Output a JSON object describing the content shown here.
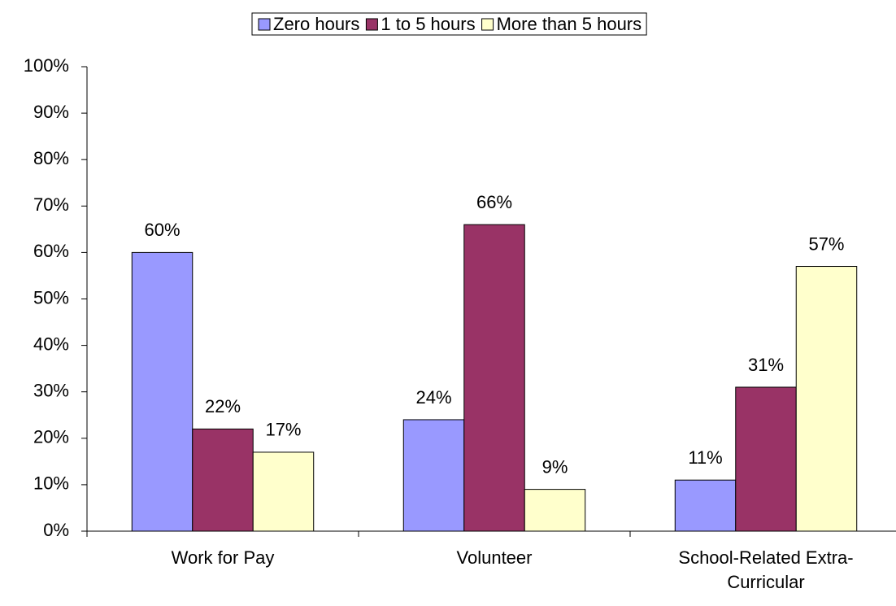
{
  "chart_data": {
    "type": "bar",
    "categories": [
      "Work for Pay",
      "Volunteer",
      "School-Related Extra-Curricular"
    ],
    "series": [
      {
        "name": "Zero hours",
        "color": "#9999ff",
        "values": [
          60,
          24,
          11
        ],
        "value_labels": [
          "60%",
          "24%",
          "11%"
        ]
      },
      {
        "name": "1 to 5 hours",
        "color": "#993366",
        "values": [
          22,
          66,
          31
        ],
        "value_labels": [
          "22%",
          "66%",
          "31%"
        ]
      },
      {
        "name": "More than 5 hours",
        "color": "#ffffcc",
        "values": [
          17,
          9,
          57
        ],
        "value_labels": [
          "17%",
          "9%",
          "57%"
        ]
      }
    ],
    "ylim": [
      0,
      100
    ],
    "yticks": [
      {
        "value": 0,
        "label": "0%"
      },
      {
        "value": 10,
        "label": "10%"
      },
      {
        "value": 20,
        "label": "20%"
      },
      {
        "value": 30,
        "label": "30%"
      },
      {
        "value": 40,
        "label": "40%"
      },
      {
        "value": 50,
        "label": "50%"
      },
      {
        "value": 60,
        "label": "60%"
      },
      {
        "value": 70,
        "label": "70%"
      },
      {
        "value": 80,
        "label": "80%"
      },
      {
        "value": 90,
        "label": "90%"
      },
      {
        "value": 100,
        "label": "100%"
      }
    ],
    "grid": false,
    "legend": "top"
  }
}
